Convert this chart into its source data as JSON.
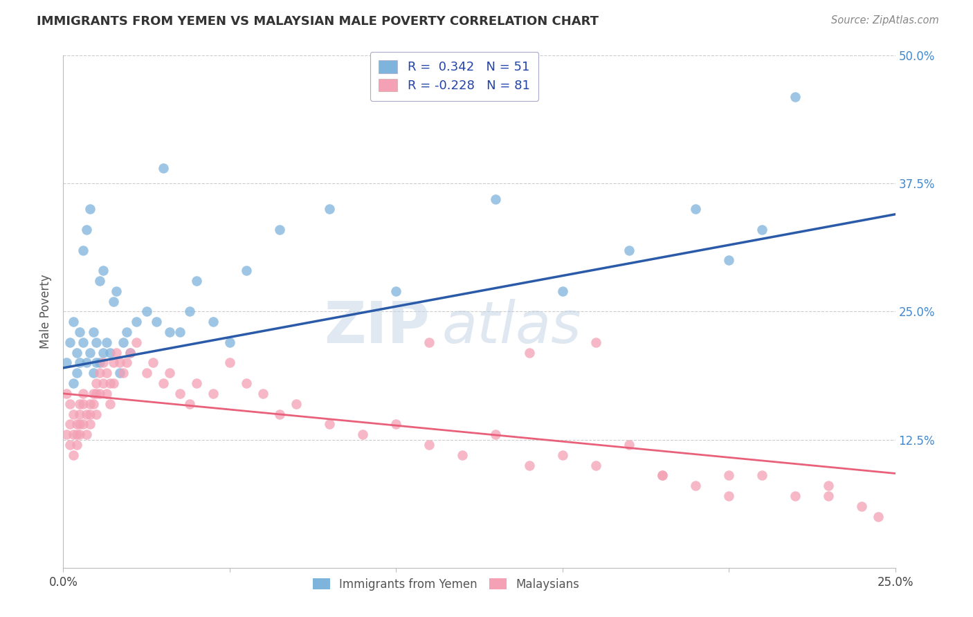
{
  "title": "IMMIGRANTS FROM YEMEN VS MALAYSIAN MALE POVERTY CORRELATION CHART",
  "source": "Source: ZipAtlas.com",
  "xlabel_blue": "Immigrants from Yemen",
  "xlabel_pink": "Malaysians",
  "ylabel": "Male Poverty",
  "xlim": [
    0,
    0.25
  ],
  "ylim": [
    0,
    0.5
  ],
  "blue_R": 0.342,
  "blue_N": 51,
  "pink_R": -0.228,
  "pink_N": 81,
  "blue_color": "#7EB3DC",
  "pink_color": "#F4A0B5",
  "blue_line_color": "#2B5BA8",
  "pink_line_color": "#E8607A",
  "watermark_zip": "ZIP",
  "watermark_atlas": "atlas",
  "background_color": "#FFFFFF",
  "grid_color": "#CCCCCC",
  "blue_line_y0": 0.195,
  "blue_line_y1": 0.345,
  "pink_line_y0": 0.17,
  "pink_line_y1": 0.092,
  "blue_scatter_x": [
    0.001,
    0.002,
    0.003,
    0.003,
    0.004,
    0.004,
    0.005,
    0.005,
    0.006,
    0.006,
    0.007,
    0.007,
    0.008,
    0.008,
    0.009,
    0.009,
    0.01,
    0.01,
    0.011,
    0.011,
    0.012,
    0.012,
    0.013,
    0.014,
    0.015,
    0.016,
    0.017,
    0.018,
    0.019,
    0.02,
    0.022,
    0.025,
    0.028,
    0.03,
    0.032,
    0.035,
    0.038,
    0.04,
    0.045,
    0.05,
    0.055,
    0.065,
    0.08,
    0.1,
    0.13,
    0.15,
    0.17,
    0.19,
    0.2,
    0.21,
    0.22
  ],
  "blue_scatter_y": [
    0.2,
    0.22,
    0.18,
    0.24,
    0.19,
    0.21,
    0.2,
    0.23,
    0.31,
    0.22,
    0.33,
    0.2,
    0.35,
    0.21,
    0.19,
    0.23,
    0.2,
    0.22,
    0.28,
    0.2,
    0.29,
    0.21,
    0.22,
    0.21,
    0.26,
    0.27,
    0.19,
    0.22,
    0.23,
    0.21,
    0.24,
    0.25,
    0.24,
    0.39,
    0.23,
    0.23,
    0.25,
    0.28,
    0.24,
    0.22,
    0.29,
    0.33,
    0.35,
    0.27,
    0.36,
    0.27,
    0.31,
    0.35,
    0.3,
    0.33,
    0.46
  ],
  "pink_scatter_x": [
    0.001,
    0.001,
    0.002,
    0.002,
    0.002,
    0.003,
    0.003,
    0.003,
    0.004,
    0.004,
    0.004,
    0.005,
    0.005,
    0.005,
    0.005,
    0.006,
    0.006,
    0.006,
    0.007,
    0.007,
    0.008,
    0.008,
    0.008,
    0.009,
    0.009,
    0.01,
    0.01,
    0.01,
    0.011,
    0.011,
    0.012,
    0.012,
    0.013,
    0.013,
    0.014,
    0.014,
    0.015,
    0.015,
    0.016,
    0.017,
    0.018,
    0.019,
    0.02,
    0.022,
    0.025,
    0.027,
    0.03,
    0.032,
    0.035,
    0.038,
    0.04,
    0.045,
    0.05,
    0.055,
    0.06,
    0.065,
    0.07,
    0.08,
    0.09,
    0.1,
    0.11,
    0.12,
    0.13,
    0.14,
    0.15,
    0.16,
    0.17,
    0.18,
    0.19,
    0.2,
    0.21,
    0.22,
    0.23,
    0.24,
    0.245,
    0.11,
    0.14,
    0.16,
    0.18,
    0.2,
    0.23
  ],
  "pink_scatter_y": [
    0.17,
    0.13,
    0.16,
    0.14,
    0.12,
    0.15,
    0.13,
    0.11,
    0.14,
    0.13,
    0.12,
    0.16,
    0.15,
    0.14,
    0.13,
    0.17,
    0.16,
    0.14,
    0.15,
    0.13,
    0.16,
    0.15,
    0.14,
    0.17,
    0.16,
    0.18,
    0.17,
    0.15,
    0.19,
    0.17,
    0.2,
    0.18,
    0.19,
    0.17,
    0.18,
    0.16,
    0.2,
    0.18,
    0.21,
    0.2,
    0.19,
    0.2,
    0.21,
    0.22,
    0.19,
    0.2,
    0.18,
    0.19,
    0.17,
    0.16,
    0.18,
    0.17,
    0.2,
    0.18,
    0.17,
    0.15,
    0.16,
    0.14,
    0.13,
    0.14,
    0.12,
    0.11,
    0.13,
    0.1,
    0.11,
    0.1,
    0.12,
    0.09,
    0.08,
    0.07,
    0.09,
    0.07,
    0.08,
    0.06,
    0.05,
    0.22,
    0.21,
    0.22,
    0.09,
    0.09,
    0.07
  ]
}
